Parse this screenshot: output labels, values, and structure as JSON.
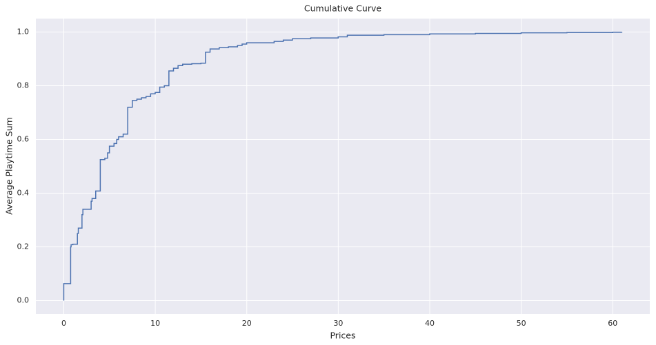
{
  "chart_data": {
    "type": "line",
    "step": "post",
    "title": "Cumulative Curve",
    "x_label": "Prices",
    "y_label": "Average Playtime Sum",
    "series": [
      {
        "color": "#4c72b0",
        "x": [
          0,
          0,
          0.75,
          0.8,
          0.99,
          1.49,
          1.59,
          1.69,
          1.99,
          2.09,
          2.49,
          2.99,
          3.09,
          3.49,
          3.99,
          4.49,
          4.79,
          4.99,
          5.49,
          5.79,
          5.99,
          6.49,
          6.99,
          7.49,
          7.99,
          8.49,
          8.99,
          9.49,
          9.99,
          10.49,
          10.99,
          11.49,
          11.99,
          12.49,
          12.99,
          13.99,
          14.99,
          15.49,
          15.99,
          16.99,
          17.99,
          18.99,
          19.49,
          19.99,
          22.99,
          23.99,
          24.99,
          26.99,
          29.99,
          30.99,
          34.99,
          39.99,
          44.99,
          49.99,
          54.99,
          59.99,
          60.99
        ],
        "values": [
          0,
          0.063,
          0.2,
          0.208,
          0.21,
          0.25,
          0.27,
          0.27,
          0.32,
          0.34,
          0.34,
          0.37,
          0.38,
          0.408,
          0.525,
          0.53,
          0.55,
          0.575,
          0.585,
          0.6,
          0.61,
          0.62,
          0.72,
          0.745,
          0.75,
          0.755,
          0.76,
          0.77,
          0.775,
          0.795,
          0.8,
          0.855,
          0.865,
          0.875,
          0.88,
          0.882,
          0.884,
          0.925,
          0.937,
          0.942,
          0.945,
          0.95,
          0.955,
          0.96,
          0.965,
          0.97,
          0.975,
          0.978,
          0.982,
          0.988,
          0.99,
          0.993,
          0.995,
          0.997,
          0.998,
          0.999,
          1.0
        ]
      }
    ],
    "xlim": [
      -3.05,
      64.05
    ],
    "xticks": [
      0,
      10,
      20,
      30,
      40,
      50,
      60
    ],
    "ylim": [
      -0.05,
      1.05
    ],
    "yticks": [
      {
        "value": 0,
        "label": "0.0"
      },
      0.2,
      0.4,
      0.6,
      0.8,
      {
        "value": 1,
        "label": "1.0"
      }
    ],
    "grid": true
  }
}
